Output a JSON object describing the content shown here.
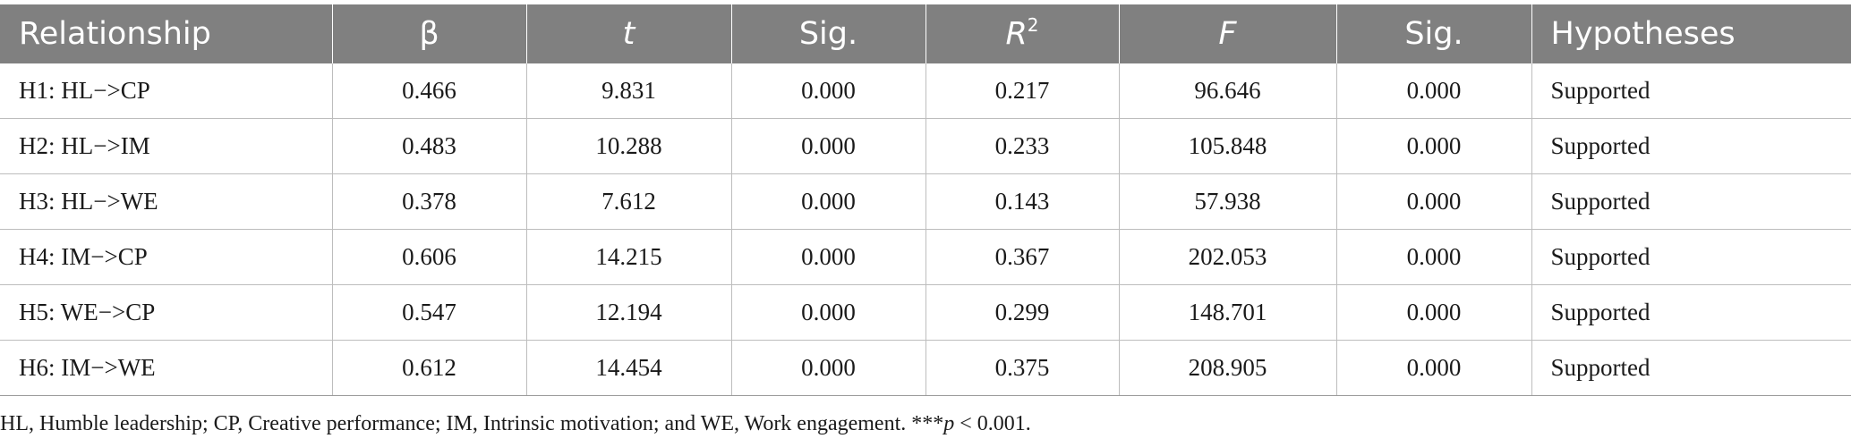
{
  "table": {
    "headers": {
      "relationship": "Relationship",
      "beta": "β",
      "t": "t",
      "sig1": "Sig.",
      "r2_base": "R",
      "r2_sup": "2",
      "f": "F",
      "sig2": "Sig.",
      "hypotheses": "Hypotheses"
    },
    "rows": [
      {
        "relationship": "H1: HL−>CP",
        "beta": "0.466",
        "t": "9.831",
        "sig1": "0.000",
        "r2": "0.217",
        "f": "96.646",
        "sig2": "0.000",
        "hypotheses": "Supported"
      },
      {
        "relationship": "H2: HL−>IM",
        "beta": "0.483",
        "t": "10.288",
        "sig1": "0.000",
        "r2": "0.233",
        "f": "105.848",
        "sig2": "0.000",
        "hypotheses": "Supported"
      },
      {
        "relationship": "H3: HL−>WE",
        "beta": "0.378",
        "t": "7.612",
        "sig1": "0.000",
        "r2": "0.143",
        "f": "57.938",
        "sig2": "0.000",
        "hypotheses": "Supported"
      },
      {
        "relationship": "H4: IM−>CP",
        "beta": "0.606",
        "t": "14.215",
        "sig1": "0.000",
        "r2": "0.367",
        "f": "202.053",
        "sig2": "0.000",
        "hypotheses": "Supported"
      },
      {
        "relationship": "H5: WE−>CP",
        "beta": "0.547",
        "t": "12.194",
        "sig1": "0.000",
        "r2": "0.299",
        "f": "148.701",
        "sig2": "0.000",
        "hypotheses": "Supported"
      },
      {
        "relationship": "H6: IM−>WE",
        "beta": "0.612",
        "t": "14.454",
        "sig1": "0.000",
        "r2": "0.375",
        "f": "208.905",
        "sig2": "0.000",
        "hypotheses": "Supported"
      }
    ]
  },
  "footnote": {
    "text": "HL, Humble leadership; CP, Creative performance; IM, Intrinsic motivation; and WE, Work engagement. ***",
    "p_italic": "p",
    "tail": " < 0.001."
  },
  "colors": {
    "header_bg": "#808080",
    "header_text": "#ffffff",
    "grid": "#bdbdbd"
  }
}
